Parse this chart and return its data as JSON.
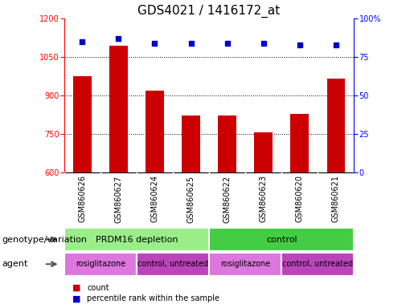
{
  "title": "GDS4021 / 1416172_at",
  "samples": [
    "GSM860626",
    "GSM860627",
    "GSM860624",
    "GSM860625",
    "GSM860622",
    "GSM860623",
    "GSM860620",
    "GSM860621"
  ],
  "counts": [
    975,
    1095,
    920,
    822,
    822,
    755,
    828,
    965
  ],
  "percentiles": [
    85,
    87,
    84,
    84,
    84,
    84,
    83,
    83
  ],
  "ylim_left": [
    600,
    1200
  ],
  "ylim_right": [
    0,
    100
  ],
  "yticks_left": [
    600,
    750,
    900,
    1050,
    1200
  ],
  "yticks_right": [
    0,
    25,
    50,
    75,
    100
  ],
  "bar_color": "#cc0000",
  "dot_color": "#0000cc",
  "bar_bottom": 600,
  "genotype_groups": [
    {
      "label": "PRDM16 depletion",
      "start": 0,
      "end": 4,
      "color": "#99ee88"
    },
    {
      "label": "control",
      "start": 4,
      "end": 8,
      "color": "#44cc44"
    }
  ],
  "agent_groups": [
    {
      "label": "rosiglitazone",
      "start": 0,
      "end": 2,
      "color": "#dd77dd"
    },
    {
      "label": "control, untreated",
      "start": 2,
      "end": 4,
      "color": "#bb44bb"
    },
    {
      "label": "rosiglitazone",
      "start": 4,
      "end": 6,
      "color": "#dd77dd"
    },
    {
      "label": "control, untreated",
      "start": 6,
      "end": 8,
      "color": "#bb44bb"
    }
  ],
  "legend_count_color": "#cc0000",
  "legend_percentile_color": "#0000cc",
  "tick_label_fontsize": 7,
  "title_fontsize": 11,
  "annotation_fontsize": 8,
  "group_label_fontsize": 8,
  "agent_label_fontsize": 7,
  "sample_label_fontsize": 7
}
